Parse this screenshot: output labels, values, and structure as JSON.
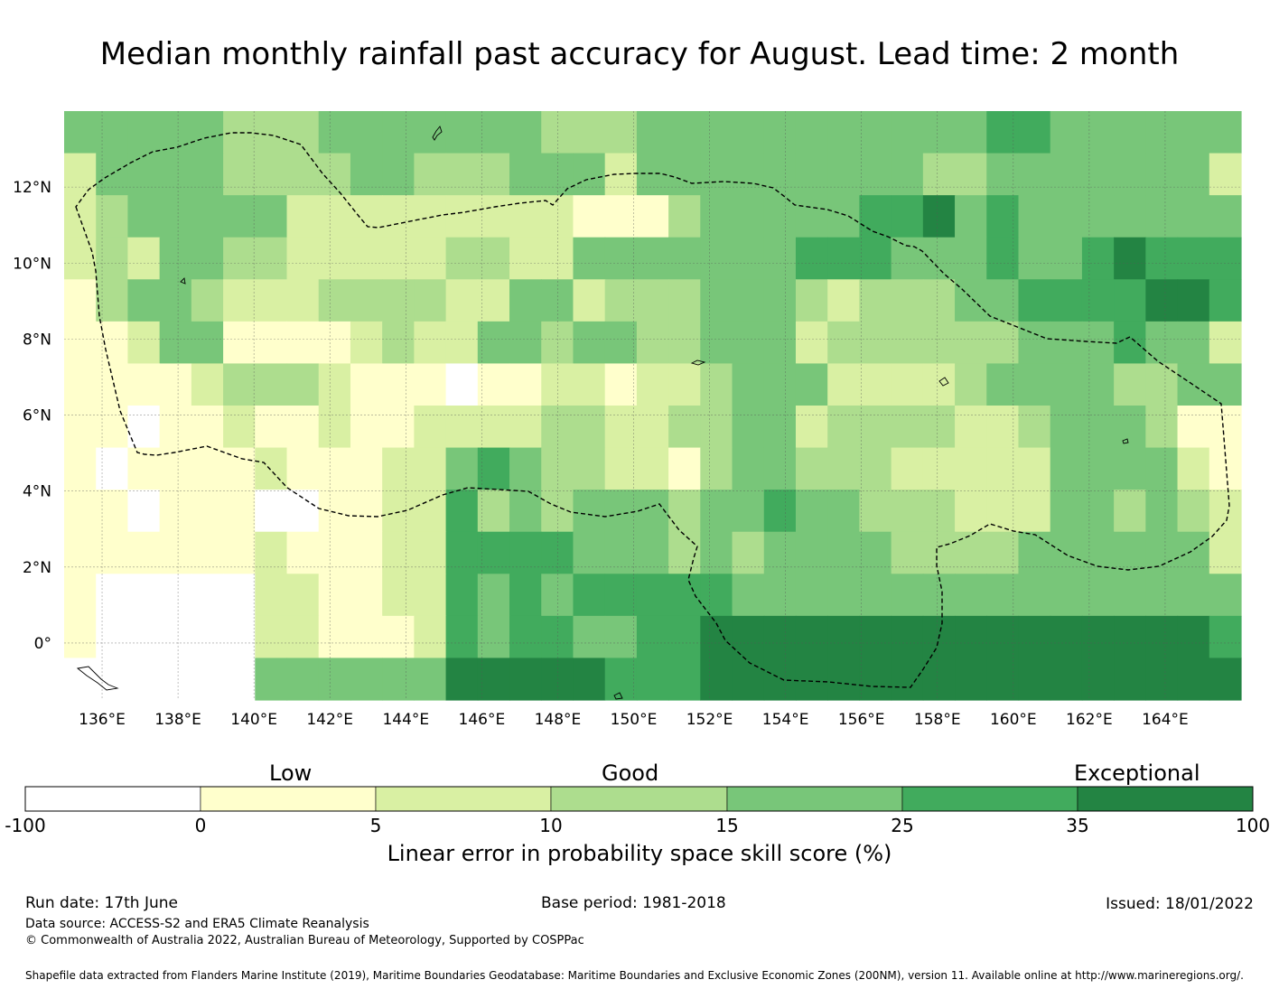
{
  "title": "Median monthly rainfall past accuracy for August. Lead time: 2 month",
  "map": {
    "lon_ticks": [
      "136°E",
      "138°E",
      "140°E",
      "142°E",
      "144°E",
      "146°E",
      "148°E",
      "150°E",
      "152°E",
      "154°E",
      "156°E",
      "158°E",
      "160°E",
      "162°E",
      "164°E"
    ],
    "lat_ticks": [
      "12°N",
      "10°N",
      "8°N",
      "6°N",
      "4°N",
      "2°N",
      "0°"
    ],
    "lon_range": [
      135.0,
      166.0
    ],
    "lat_range": [
      -1.5,
      14.0
    ],
    "grid_lines": true,
    "eez_boundary": "dashed",
    "skill_regions_note": "",
    "colors": {
      "white": "#ffffff",
      "c0": "#ffffcc",
      "c5": "#d9f0a3",
      "c10": "#addd8e",
      "c15": "#78c679",
      "c25": "#41ab5d",
      "c35": "#238443"
    }
  },
  "colorbar": {
    "categories": [
      "Low",
      "Good",
      "Exceptional"
    ],
    "ticks": [
      "-100",
      "0",
      "5",
      "10",
      "15",
      "25",
      "35",
      "100"
    ],
    "colors": [
      "#ffffff",
      "#ffffcc",
      "#d9f0a3",
      "#addd8e",
      "#78c679",
      "#41ab5d",
      "#238443"
    ],
    "label": "Linear error in probability space skill score (%)"
  },
  "footer": {
    "run_date": "Run date: 17th June",
    "base_period": "Base period: 1981-2018",
    "issued": "Issued: 18/01/2022",
    "data_source": "Data source: ACCESS-S2 and ERA5 Climate Reanalysis",
    "copyright": "© Commonwealth of Australia 2022, Australian Bureau of Meteorology, Supported by COSPPac",
    "shapefile": "Shapefile data extracted from Flanders Marine Institute (2019), Maritime Boundaries Geodatabase: Maritime Boundaries and Exclusive Economic Zones (200NM), version 11. Available online at http://www.marineregions.org/."
  }
}
